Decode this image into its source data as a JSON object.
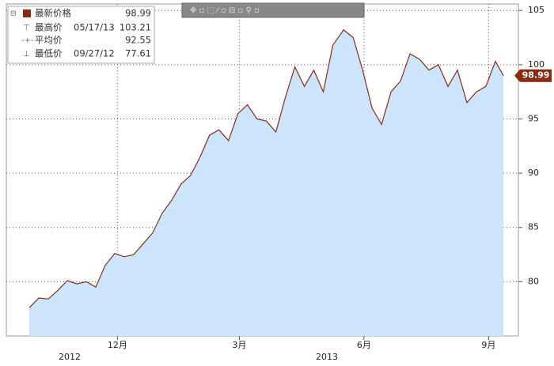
{
  "chart_data": {
    "type": "area",
    "x": [
      "2012-09-27",
      "2012-10-04",
      "2012-10-11",
      "2012-10-18",
      "2012-10-25",
      "2012-11-01",
      "2012-11-08",
      "2012-11-15",
      "2012-11-22",
      "2012-11-29",
      "2012-12-06",
      "2012-12-13",
      "2012-12-20",
      "2012-12-27",
      "2013-01-03",
      "2013-01-10",
      "2013-01-17",
      "2013-01-24",
      "2013-01-31",
      "2013-02-07",
      "2013-02-14",
      "2013-02-21",
      "2013-02-28",
      "2013-03-07",
      "2013-03-14",
      "2013-03-21",
      "2013-03-28",
      "2013-04-04",
      "2013-04-11",
      "2013-04-18",
      "2013-04-25",
      "2013-05-02",
      "2013-05-09",
      "2013-05-17",
      "2013-05-24",
      "2013-05-31",
      "2013-06-07",
      "2013-06-14",
      "2013-06-21",
      "2013-06-28",
      "2013-07-05",
      "2013-07-12",
      "2013-07-19",
      "2013-07-26",
      "2013-08-02",
      "2013-08-09",
      "2013-08-16",
      "2013-08-23",
      "2013-08-30",
      "2013-09-06",
      "2013-09-12"
    ],
    "series": [
      {
        "name": "最新价格",
        "color": "#8b2a12",
        "fill": "#cce5fb",
        "values": [
          77.61,
          78.5,
          78.4,
          79.2,
          80.1,
          79.8,
          80.0,
          79.5,
          81.5,
          82.6,
          82.3,
          82.5,
          83.5,
          84.5,
          86.3,
          87.5,
          89.0,
          89.8,
          91.5,
          93.5,
          94.0,
          93.0,
          95.5,
          96.3,
          95.0,
          94.8,
          93.8,
          97.0,
          99.8,
          98.0,
          99.5,
          97.5,
          101.8,
          103.21,
          102.5,
          99.5,
          96.0,
          94.5,
          97.5,
          98.5,
          101.0,
          100.5,
          99.5,
          100.0,
          98.0,
          99.5,
          96.5,
          97.5,
          98.0,
          100.3,
          98.99
        ]
      }
    ],
    "xlim": [
      "2012-09-10",
      "2013-09-23"
    ],
    "xticks": [
      {
        "value": "2012-12-01",
        "label": "12月"
      },
      {
        "value": "2013-03-01",
        "label": "3月"
      },
      {
        "value": "2013-06-01",
        "label": "6月"
      },
      {
        "value": "2013-09-01",
        "label": "9月"
      }
    ],
    "years": [
      "2012",
      "2013"
    ],
    "ylim": [
      75,
      105.6
    ],
    "yticks": [
      80,
      85,
      90,
      95,
      100,
      105
    ],
    "grid": true,
    "legend": [
      {
        "label": "最新价格",
        "value": "98.99"
      },
      {
        "label": "最高价",
        "date": "05/17/13",
        "value": "103.21"
      },
      {
        "label": "平均价",
        "value": "92.55"
      },
      {
        "label": "最低价",
        "date": "09/27/12",
        "value": "77.61"
      }
    ]
  }
}
